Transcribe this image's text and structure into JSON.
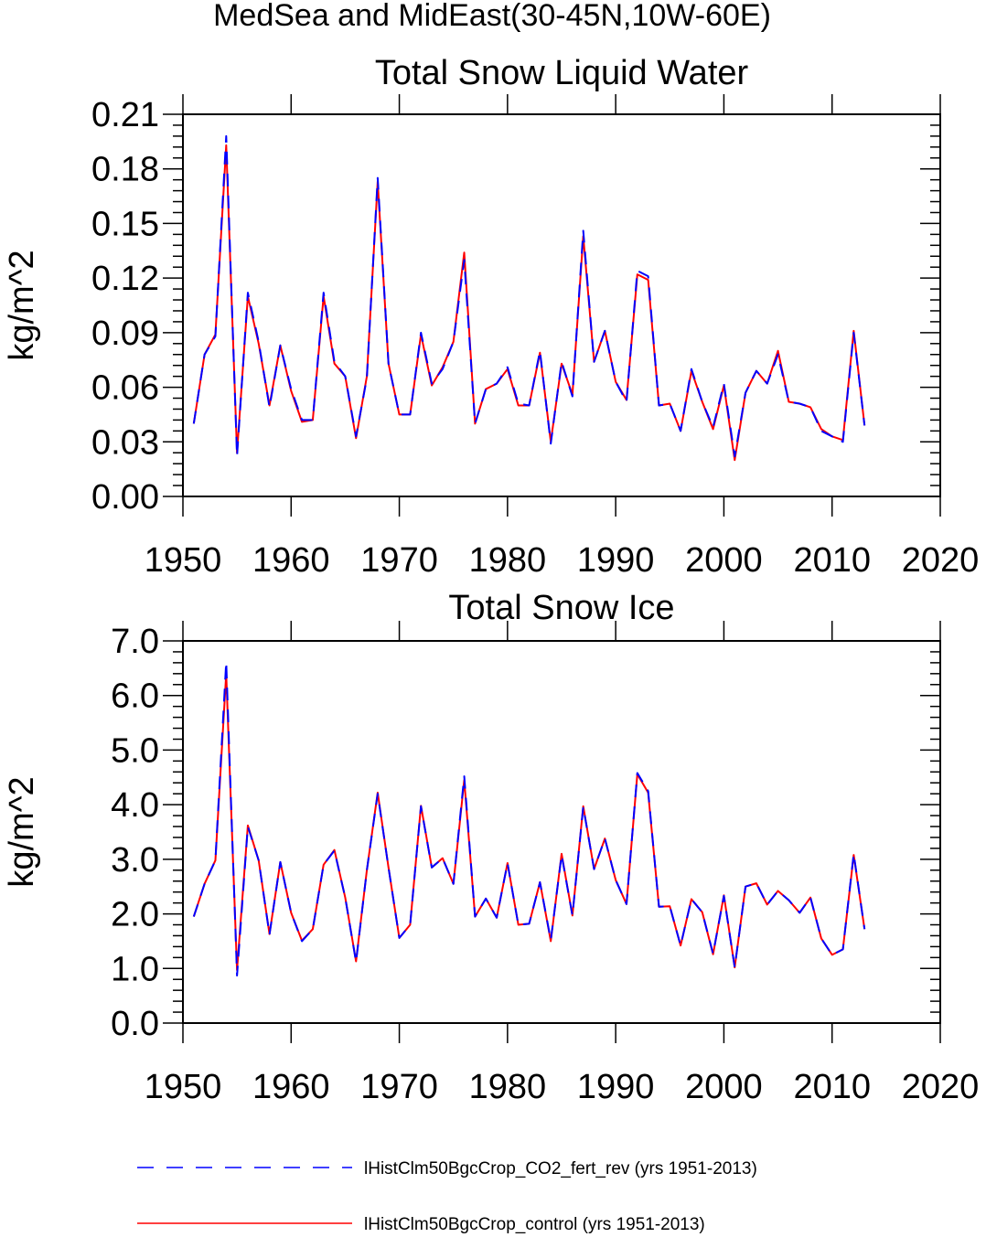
{
  "figure": {
    "title": "MedSea and MidEast(30-45N,10W-60E)"
  },
  "legend": {
    "entries": [
      {
        "label": "lHistClm50BgcCrop_CO2_fert_rev (yrs 1951-2013)",
        "color": "#0000ff",
        "dash": "dashed"
      },
      {
        "label": "lHistClm50BgcCrop_control (yrs 1951-2013)",
        "color": "#ff0000",
        "dash": "solid"
      }
    ]
  },
  "chart_data": [
    {
      "type": "line",
      "title": "Total Snow Liquid Water",
      "xlabel": "",
      "ylabel": "kg/m^2",
      "xlim": [
        1950,
        2020
      ],
      "ylim": [
        0.0,
        0.21
      ],
      "xticks": [
        "1950",
        "1960",
        "1970",
        "1980",
        "1990",
        "2000",
        "2010",
        "2020"
      ],
      "yticks": [
        "0.00",
        "0.03",
        "0.06",
        "0.09",
        "0.12",
        "0.15",
        "0.18",
        "0.21"
      ],
      "x_start": 1951,
      "x_end": 2013,
      "series": [
        {
          "name": "lHistClm50BgcCrop_CO2_fert_rev (yrs 1951-2013)",
          "color": "#0000ff",
          "values": [
            0.04,
            0.078,
            0.088,
            0.198,
            0.022,
            0.112,
            0.085,
            0.049,
            0.083,
            0.059,
            0.042,
            0.042,
            0.112,
            0.074,
            0.066,
            0.033,
            0.065,
            0.175,
            0.073,
            0.045,
            0.045,
            0.09,
            0.062,
            0.07,
            0.085,
            0.13,
            0.04,
            0.059,
            0.062,
            0.071,
            0.051,
            0.05,
            0.08,
            0.029,
            0.074,
            0.055,
            0.146,
            0.074,
            0.091,
            0.063,
            0.052,
            0.124,
            0.121,
            0.05,
            0.051,
            0.036,
            0.07,
            0.052,
            0.038,
            0.062,
            0.022,
            0.057,
            0.069,
            0.062,
            0.078,
            0.052,
            0.051,
            0.049,
            0.036,
            0.033,
            0.03,
            0.09,
            0.039
          ]
        },
        {
          "name": "lHistClm50BgcCrop_control (yrs 1951-2013)",
          "color": "#ff0000",
          "values": [
            0.04,
            0.078,
            0.089,
            0.193,
            0.024,
            0.11,
            0.084,
            0.05,
            0.083,
            0.058,
            0.041,
            0.042,
            0.11,
            0.073,
            0.066,
            0.032,
            0.066,
            0.173,
            0.073,
            0.045,
            0.045,
            0.089,
            0.061,
            0.071,
            0.085,
            0.134,
            0.04,
            0.059,
            0.062,
            0.07,
            0.05,
            0.05,
            0.079,
            0.03,
            0.073,
            0.056,
            0.143,
            0.074,
            0.091,
            0.063,
            0.053,
            0.122,
            0.119,
            0.05,
            0.051,
            0.036,
            0.069,
            0.052,
            0.037,
            0.061,
            0.02,
            0.057,
            0.069,
            0.062,
            0.08,
            0.052,
            0.051,
            0.049,
            0.037,
            0.033,
            0.031,
            0.091,
            0.039
          ]
        }
      ]
    },
    {
      "type": "line",
      "title": "Total Snow Ice",
      "xlabel": "",
      "ylabel": "kg/m^2",
      "xlim": [
        1950,
        2020
      ],
      "ylim": [
        0.0,
        7.0
      ],
      "xticks": [
        "1950",
        "1960",
        "1970",
        "1980",
        "1990",
        "2000",
        "2010",
        "2020"
      ],
      "yticks": [
        "0.0",
        "1.0",
        "2.0",
        "3.0",
        "4.0",
        "5.0",
        "6.0",
        "7.0"
      ],
      "x_start": 1951,
      "x_end": 2013,
      "series": [
        {
          "name": "lHistClm50BgcCrop_CO2_fert_rev (yrs 1951-2013)",
          "color": "#0000ff",
          "values": [
            1.95,
            2.55,
            2.98,
            6.62,
            0.87,
            3.6,
            2.98,
            1.62,
            2.95,
            2.02,
            1.5,
            1.72,
            2.9,
            3.16,
            2.3,
            1.12,
            2.8,
            4.2,
            2.85,
            1.56,
            1.8,
            3.97,
            2.85,
            3.02,
            2.55,
            4.52,
            1.95,
            2.28,
            1.93,
            2.93,
            1.8,
            1.82,
            2.58,
            1.52,
            3.08,
            1.97,
            3.96,
            2.82,
            3.38,
            2.62,
            2.18,
            4.58,
            4.25,
            2.13,
            2.14,
            1.42,
            2.27,
            2.03,
            1.27,
            2.33,
            1.02,
            2.5,
            2.56,
            2.17,
            2.42,
            2.25,
            2.02,
            2.3,
            1.55,
            1.25,
            1.35,
            3.1,
            1.72
          ]
        },
        {
          "name": "lHistClm50BgcCrop_control (yrs 1951-2013)",
          "color": "#ff0000",
          "values": [
            1.95,
            2.55,
            2.98,
            6.4,
            0.97,
            3.62,
            2.98,
            1.63,
            2.95,
            2.02,
            1.51,
            1.72,
            2.9,
            3.17,
            2.3,
            1.13,
            2.8,
            4.22,
            2.85,
            1.56,
            1.8,
            3.98,
            2.85,
            3.02,
            2.55,
            4.45,
            1.95,
            2.28,
            1.93,
            2.93,
            1.8,
            1.82,
            2.58,
            1.5,
            3.1,
            1.97,
            3.97,
            2.82,
            3.38,
            2.62,
            2.18,
            4.56,
            4.22,
            2.13,
            2.14,
            1.42,
            2.27,
            2.03,
            1.26,
            2.34,
            1.02,
            2.5,
            2.56,
            2.17,
            2.42,
            2.25,
            2.02,
            2.3,
            1.55,
            1.25,
            1.35,
            3.08,
            1.72
          ]
        }
      ]
    }
  ]
}
